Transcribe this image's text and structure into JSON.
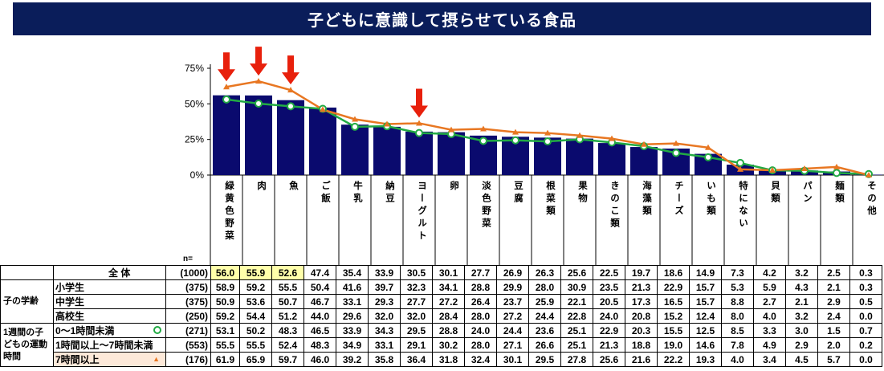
{
  "title": "子どもに意識して摂らせている食品",
  "chart_data": {
    "type": "bar",
    "categories": [
      "緑黄色野菜",
      "肉",
      "魚",
      "ご飯",
      "牛乳",
      "納豆",
      "ヨーグルト",
      "卵",
      "淡色野菜",
      "豆腐",
      "根菜類",
      "果物",
      "きのこ類",
      "海藻類",
      "チーズ",
      "いも類",
      "特にない",
      "貝類",
      "パン",
      "麺類",
      "その他"
    ],
    "ylim": [
      0,
      75
    ],
    "yticks": [
      "0%",
      "25%",
      "50%",
      "75%"
    ],
    "yticks_values": [
      0,
      25,
      50,
      75
    ],
    "series": [
      {
        "values": [
          56.0,
          55.9,
          52.6,
          47.4,
          35.4,
          33.9,
          30.5,
          30.1,
          27.7,
          26.9,
          26.3,
          25.6,
          22.5,
          19.7,
          18.6,
          14.9,
          7.3,
          4.2,
          3.2,
          2.5,
          0.3
        ],
        "color": "#0a0a6e",
        "kind": "bar"
      },
      {
        "values": [
          53.1,
          50.2,
          48.3,
          46.5,
          33.9,
          34.3,
          29.5,
          28.8,
          24.0,
          24.4,
          23.6,
          25.1,
          22.9,
          20.3,
          15.5,
          12.5,
          8.5,
          3.3,
          3.0,
          1.5,
          0.7
        ],
        "color": "#22aa44",
        "kind": "line",
        "marker": "circle"
      },
      {
        "values": [
          61.9,
          65.9,
          59.7,
          46.0,
          39.2,
          35.8,
          36.4,
          31.8,
          32.4,
          30.1,
          29.5,
          27.8,
          25.6,
          21.6,
          22.2,
          19.3,
          4.0,
          3.4,
          4.5,
          5.7,
          0.0
        ],
        "color": "#e87722",
        "kind": "line",
        "marker": "triangle"
      }
    ],
    "arrows_at": [
      "緑黄色野菜",
      "肉",
      "魚",
      "ヨーグルト"
    ],
    "arrow_color": "#e8200c"
  },
  "table": {
    "n_header": "n=",
    "rows": [
      {
        "group": "",
        "label": "全 体",
        "n": "(1000)",
        "values": [
          "56.0",
          "55.9",
          "52.6",
          "47.4",
          "35.4",
          "33.9",
          "30.5",
          "30.1",
          "27.7",
          "26.9",
          "26.3",
          "25.6",
          "22.5",
          "19.7",
          "18.6",
          "14.9",
          "7.3",
          "4.2",
          "3.2",
          "2.5",
          "0.3"
        ],
        "highlight_first": 3
      },
      {
        "group": "子の学齢",
        "label": "小学生",
        "n": "(375)",
        "values": [
          "58.9",
          "59.2",
          "55.5",
          "50.4",
          "41.6",
          "39.7",
          "32.3",
          "34.1",
          "28.8",
          "29.9",
          "28.0",
          "30.9",
          "23.5",
          "21.3",
          "22.9",
          "15.7",
          "5.3",
          "5.9",
          "4.3",
          "2.1",
          "0.3"
        ]
      },
      {
        "group": "",
        "label": "中学生",
        "n": "(375)",
        "values": [
          "50.9",
          "53.6",
          "50.7",
          "46.7",
          "33.1",
          "29.3",
          "27.7",
          "27.2",
          "26.4",
          "23.7",
          "25.9",
          "22.1",
          "20.5",
          "17.3",
          "16.5",
          "15.7",
          "8.8",
          "2.7",
          "2.1",
          "2.9",
          "0.5"
        ]
      },
      {
        "group": "",
        "label": "高校生",
        "n": "(250)",
        "values": [
          "59.2",
          "54.4",
          "51.2",
          "44.0",
          "29.6",
          "32.0",
          "32.0",
          "28.4",
          "28.0",
          "27.2",
          "24.4",
          "22.8",
          "24.0",
          "20.8",
          "15.2",
          "12.4",
          "8.0",
          "4.0",
          "3.2",
          "2.4",
          "0.0"
        ]
      },
      {
        "group": "1週間の子どもの運動時間",
        "label": "0～1時間未満",
        "n": "(271)",
        "values": [
          "53.1",
          "50.2",
          "48.3",
          "46.5",
          "33.9",
          "34.3",
          "29.5",
          "28.8",
          "24.0",
          "24.4",
          "23.6",
          "25.1",
          "22.9",
          "20.3",
          "15.5",
          "12.5",
          "8.5",
          "3.3",
          "3.0",
          "1.5",
          "0.7"
        ],
        "marker": "circle"
      },
      {
        "group": "",
        "label": "1時間以上～7時間未満",
        "n": "(553)",
        "values": [
          "55.5",
          "55.5",
          "52.4",
          "48.3",
          "34.9",
          "33.1",
          "29.1",
          "30.2",
          "28.0",
          "27.1",
          "26.6",
          "25.1",
          "21.3",
          "18.8",
          "19.0",
          "14.6",
          "7.8",
          "4.9",
          "2.9",
          "2.0",
          "0.2"
        ]
      },
      {
        "group": "",
        "label": "7時間以上",
        "n": "(176)",
        "values": [
          "61.9",
          "65.9",
          "59.7",
          "46.0",
          "39.2",
          "35.8",
          "36.4",
          "31.8",
          "32.4",
          "30.1",
          "29.5",
          "27.8",
          "25.6",
          "21.6",
          "22.2",
          "19.3",
          "4.0",
          "3.4",
          "4.5",
          "5.7",
          "0.0"
        ],
        "marker": "triangle",
        "label_highlight": true
      }
    ]
  }
}
